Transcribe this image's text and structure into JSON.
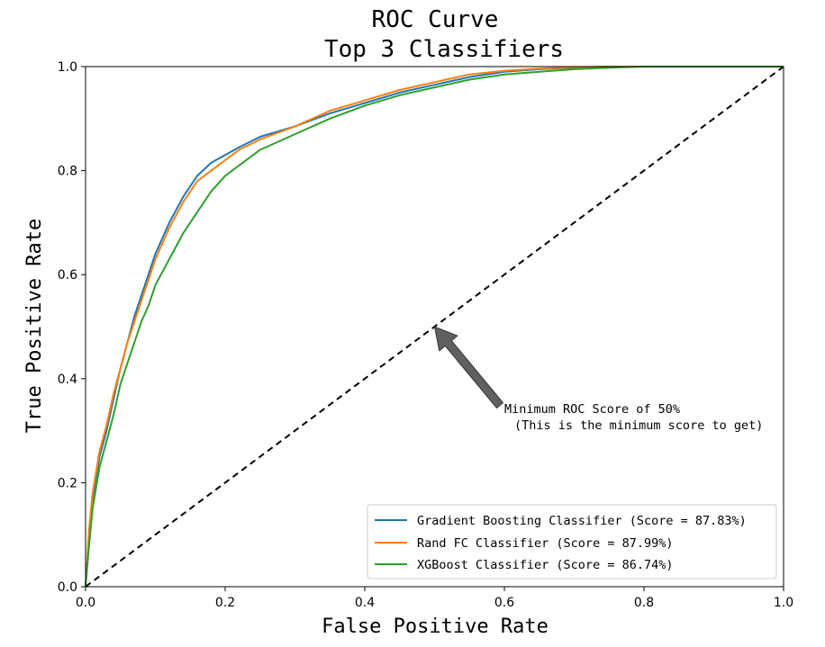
{
  "chart_data": {
    "type": "line",
    "title": "ROC Curve",
    "subtitle": "Top 3 Classifiers",
    "xlabel": "False Positive Rate",
    "ylabel": "True Positive Rate",
    "xlim": [
      0.0,
      1.0
    ],
    "ylim": [
      0.0,
      1.0
    ],
    "x_ticks": [
      "0.0",
      "0.2",
      "0.4",
      "0.6",
      "0.8",
      "1.0"
    ],
    "y_ticks": [
      "0.0",
      "0.2",
      "0.4",
      "0.6",
      "0.8",
      "1.0"
    ],
    "grid": false,
    "legend_position": "lower-right",
    "series": [
      {
        "name": "Gradient Boosting Classifier (Score = 87.83%)",
        "color": "#1f77b4",
        "x": [
          0.0,
          0.005,
          0.01,
          0.02,
          0.03,
          0.04,
          0.05,
          0.06,
          0.07,
          0.08,
          0.09,
          0.1,
          0.12,
          0.14,
          0.16,
          0.18,
          0.2,
          0.22,
          0.25,
          0.3,
          0.35,
          0.4,
          0.45,
          0.5,
          0.55,
          0.6,
          0.65,
          0.7,
          0.75,
          0.8,
          0.9,
          1.0
        ],
        "y": [
          0.0,
          0.1,
          0.17,
          0.25,
          0.3,
          0.36,
          0.42,
          0.47,
          0.52,
          0.56,
          0.6,
          0.64,
          0.7,
          0.75,
          0.79,
          0.815,
          0.83,
          0.845,
          0.865,
          0.885,
          0.91,
          0.93,
          0.95,
          0.965,
          0.98,
          0.99,
          0.995,
          0.998,
          1.0,
          1.0,
          1.0,
          1.0
        ]
      },
      {
        "name": "Rand FC Classifier (Score = 87.99%)",
        "color": "#ff7f0e",
        "x": [
          0.0,
          0.005,
          0.01,
          0.02,
          0.03,
          0.04,
          0.05,
          0.06,
          0.07,
          0.08,
          0.09,
          0.1,
          0.12,
          0.14,
          0.16,
          0.18,
          0.2,
          0.22,
          0.25,
          0.3,
          0.35,
          0.4,
          0.45,
          0.5,
          0.55,
          0.6,
          0.65,
          0.7,
          0.75,
          0.8,
          0.9,
          1.0
        ],
        "y": [
          0.0,
          0.11,
          0.18,
          0.26,
          0.31,
          0.37,
          0.42,
          0.47,
          0.51,
          0.55,
          0.59,
          0.63,
          0.69,
          0.74,
          0.78,
          0.8,
          0.82,
          0.84,
          0.86,
          0.885,
          0.915,
          0.935,
          0.955,
          0.97,
          0.985,
          0.992,
          0.996,
          0.999,
          1.0,
          1.0,
          1.0,
          1.0
        ]
      },
      {
        "name": "XGBoost Classifier (Score = 86.74%)",
        "color": "#2ca02c",
        "x": [
          0.0,
          0.005,
          0.01,
          0.02,
          0.03,
          0.04,
          0.05,
          0.06,
          0.07,
          0.08,
          0.09,
          0.1,
          0.12,
          0.14,
          0.16,
          0.18,
          0.2,
          0.22,
          0.25,
          0.3,
          0.35,
          0.4,
          0.45,
          0.5,
          0.55,
          0.6,
          0.65,
          0.7,
          0.75,
          0.8,
          0.9,
          1.0
        ],
        "y": [
          0.0,
          0.08,
          0.15,
          0.23,
          0.28,
          0.33,
          0.39,
          0.43,
          0.47,
          0.51,
          0.54,
          0.58,
          0.63,
          0.68,
          0.72,
          0.76,
          0.79,
          0.81,
          0.84,
          0.87,
          0.9,
          0.925,
          0.945,
          0.96,
          0.975,
          0.985,
          0.99,
          0.995,
          0.998,
          1.0,
          1.0,
          1.0
        ]
      }
    ],
    "reference_line": {
      "x": [
        0.0,
        1.0
      ],
      "y": [
        0.0,
        1.0
      ],
      "style": "dashed",
      "color": "#000000"
    },
    "annotation": {
      "line1": "Minimum ROC Score of 50%",
      "line2": "(This is the minimum score to get)",
      "arrow_target": [
        0.5,
        0.5
      ],
      "text_anchor": [
        0.6,
        0.34
      ],
      "arrow_color": "#606060"
    }
  }
}
